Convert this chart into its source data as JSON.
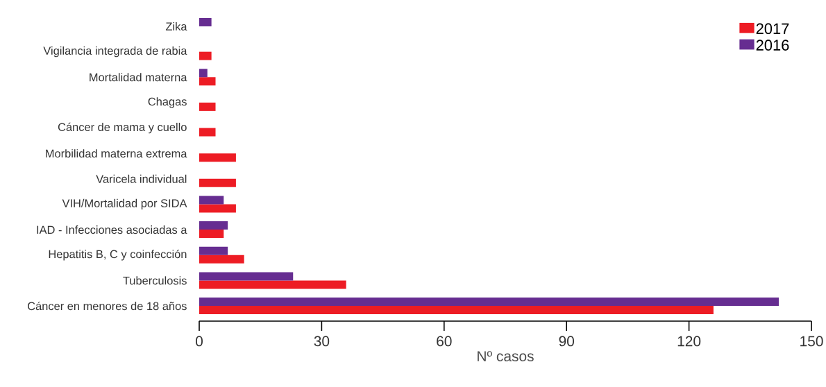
{
  "chart_data": {
    "type": "bar",
    "orientation": "horizontal",
    "xlabel": "Nº casos",
    "categories": [
      "Zika",
      "Vigilancia integrada de rabia",
      "Mortalidad materna",
      "Chagas",
      "Cáncer de mama y cuello",
      "Morbilidad materna extrema",
      "Varicela individual",
      "VIH/Mortalidad por SIDA",
      "IAD - Infecciones asociadas a",
      "Hepatitis B, C y coinfección",
      "Tuberculosis",
      "Cáncer en menores de 18 años"
    ],
    "series": [
      {
        "name": "2017",
        "color": "#ed1c24",
        "values": [
          null,
          3,
          4,
          4,
          4,
          9,
          9,
          9,
          6,
          11,
          36,
          126
        ]
      },
      {
        "name": "2016",
        "color": "#662d91",
        "values": [
          3,
          null,
          2,
          null,
          null,
          null,
          null,
          6,
          7,
          7,
          23,
          142
        ]
      }
    ],
    "xlim": [
      0,
      150
    ],
    "xticks": [
      0,
      30,
      60,
      90,
      120,
      150
    ],
    "legend": "top right"
  }
}
